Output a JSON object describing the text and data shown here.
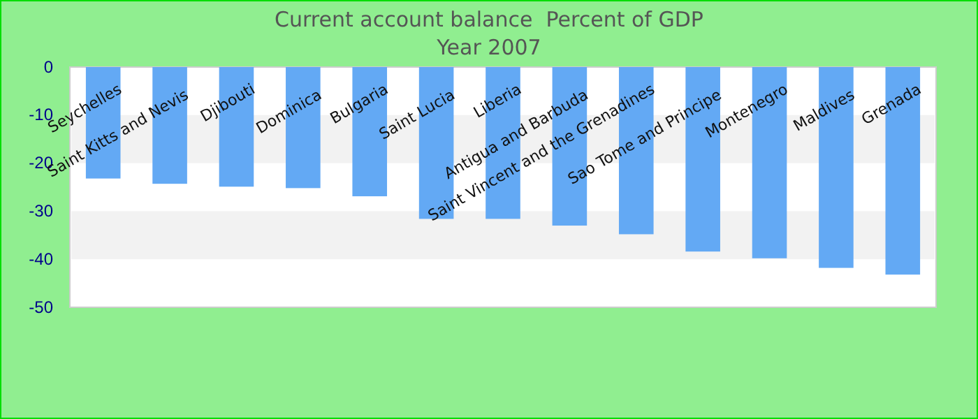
{
  "chart_data": {
    "type": "bar",
    "title": "Current account balance  Percent of GDP",
    "subtitle": "Year 2007",
    "categories": [
      "Seychelles",
      "Saint Kitts and Nevis",
      "Djibouti",
      "Dominica",
      "Bulgaria",
      "Saint Lucia",
      "Liberia",
      "Antigua and Barbuda",
      "Saint Vincent and the Grenadines",
      "Sao Tome and Principe",
      "Montenegro",
      "Maldives",
      "Grenada"
    ],
    "values": [
      -23.2,
      -24.3,
      -24.9,
      -25.2,
      -26.9,
      -31.6,
      -31.6,
      -33.0,
      -34.8,
      -38.4,
      -39.8,
      -41.8,
      -43.2
    ],
    "color": "#63a9f4",
    "ylim": [
      -50,
      0
    ],
    "yticks": [
      0,
      -10,
      -20,
      -30,
      -40,
      -50
    ],
    "bands": [
      {
        "axis": "y",
        "from": -20,
        "to": -10,
        "color": "#f2f2f2"
      },
      {
        "axis": "y",
        "from": -40,
        "to": -30,
        "color": "#f2f2f2"
      }
    ]
  }
}
